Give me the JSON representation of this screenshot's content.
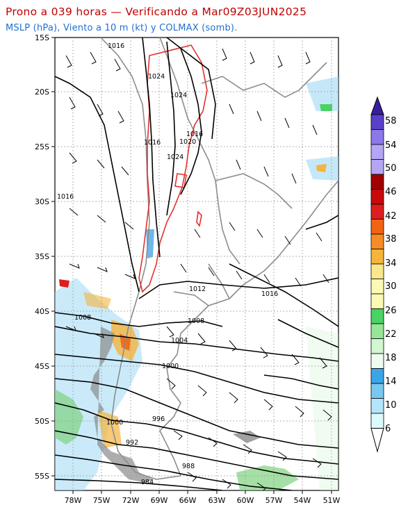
{
  "title": {
    "line1": "Prono a 039 horas — Verificando a Mar09Z03JUN2025",
    "line2": "MSLP (hPa), Viento a 10 m (kt) y COLMAX (somb)."
  },
  "axes": {
    "lat_labels": [
      "15S",
      "20S",
      "25S",
      "30S",
      "35S",
      "40S",
      "45S",
      "50S",
      "55S"
    ],
    "lon_labels": [
      "78W",
      "75W",
      "72W",
      "69W",
      "66W",
      "63W",
      "60W",
      "57W",
      "54W",
      "51W"
    ]
  },
  "isobars": [
    {
      "label": "1016"
    },
    {
      "label": "1024"
    },
    {
      "label": "1024"
    },
    {
      "label": "1016"
    },
    {
      "label": "1016"
    },
    {
      "label": "1020"
    },
    {
      "label": "1024"
    },
    {
      "label": "1016"
    },
    {
      "label": "1012"
    },
    {
      "label": "1016"
    },
    {
      "label": "1008"
    },
    {
      "label": "1008"
    },
    {
      "label": "1004"
    },
    {
      "label": "1000"
    },
    {
      "label": "996"
    },
    {
      "label": "1000"
    },
    {
      "label": "992"
    },
    {
      "label": "988"
    },
    {
      "label": "984"
    }
  ],
  "colorbar": {
    "levels": [
      "58",
      "54",
      "50",
      "46",
      "42",
      "38",
      "34",
      "30",
      "26",
      "22",
      "18",
      "14",
      "10",
      "6"
    ],
    "colors": [
      "#5a40c8",
      "#8c78e6",
      "#b4a5f5",
      "#a00000",
      "#dc1e1e",
      "#f06414",
      "#f5b43c",
      "#fae68c",
      "#fafab4",
      "#4bd264",
      "#96e696",
      "#d2f5d2",
      "#3ca5e6",
      "#78c8f0",
      "#b4e6fa",
      "#dcfafa"
    ]
  },
  "colors": {
    "title": "#c00000",
    "subtitle": "#1f6fd0",
    "isobar": "#000000",
    "high_contour": "#e03030",
    "border": "#909090"
  }
}
